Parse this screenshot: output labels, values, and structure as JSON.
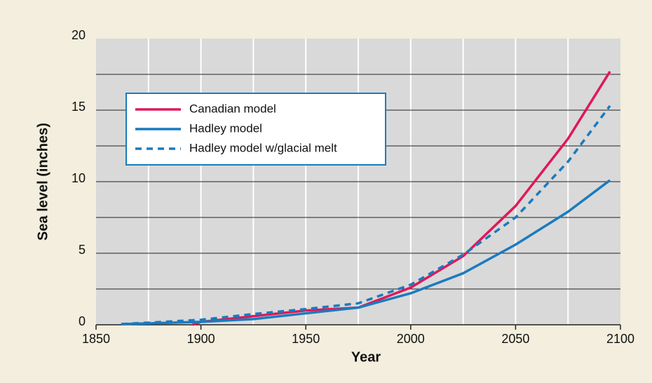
{
  "chart_data": {
    "type": "line",
    "x_label": "Year",
    "y_label": "Sea level (inches)",
    "xlim": [
      1850,
      2100
    ],
    "xticks": [
      1850,
      1900,
      1950,
      2000,
      2050,
      2100
    ],
    "xgrid": [
      1875,
      1900,
      1925,
      1950,
      1975,
      2000,
      2025,
      2050,
      2075
    ],
    "ylim": [
      0,
      20
    ],
    "yticks": [
      0,
      5,
      10,
      15,
      20
    ],
    "ygrid": [
      2.5,
      5,
      7.5,
      10,
      12.5,
      15,
      17.5
    ],
    "series": [
      {
        "name": "Canadian model",
        "color": "#e0185a",
        "dash": false,
        "x": [
          1896,
          1900,
          1925,
          1950,
          1975,
          2000,
          2025,
          2050,
          2075,
          2095
        ],
        "values": [
          0,
          0.2,
          0.6,
          1.0,
          1.2,
          2.6,
          4.8,
          8.3,
          13.0,
          17.7
        ]
      },
      {
        "name": "Hadley model",
        "color": "#1a7bbf",
        "dash": false,
        "x": [
          1862,
          1875,
          1900,
          1925,
          1950,
          1975,
          2000,
          2025,
          2050,
          2075,
          2095
        ],
        "values": [
          0.05,
          0.1,
          0.2,
          0.4,
          0.8,
          1.2,
          2.2,
          3.6,
          5.6,
          7.9,
          10.1
        ]
      },
      {
        "name": "Hadley model w/glacial melt",
        "color": "#1a7bbf",
        "dash": true,
        "x": [
          1862,
          1875,
          1900,
          1925,
          1950,
          1975,
          2000,
          2025,
          2050,
          2075,
          2095
        ],
        "values": [
          0.05,
          0.15,
          0.35,
          0.75,
          1.1,
          1.5,
          2.8,
          4.9,
          7.5,
          11.4,
          15.3
        ]
      }
    ]
  }
}
